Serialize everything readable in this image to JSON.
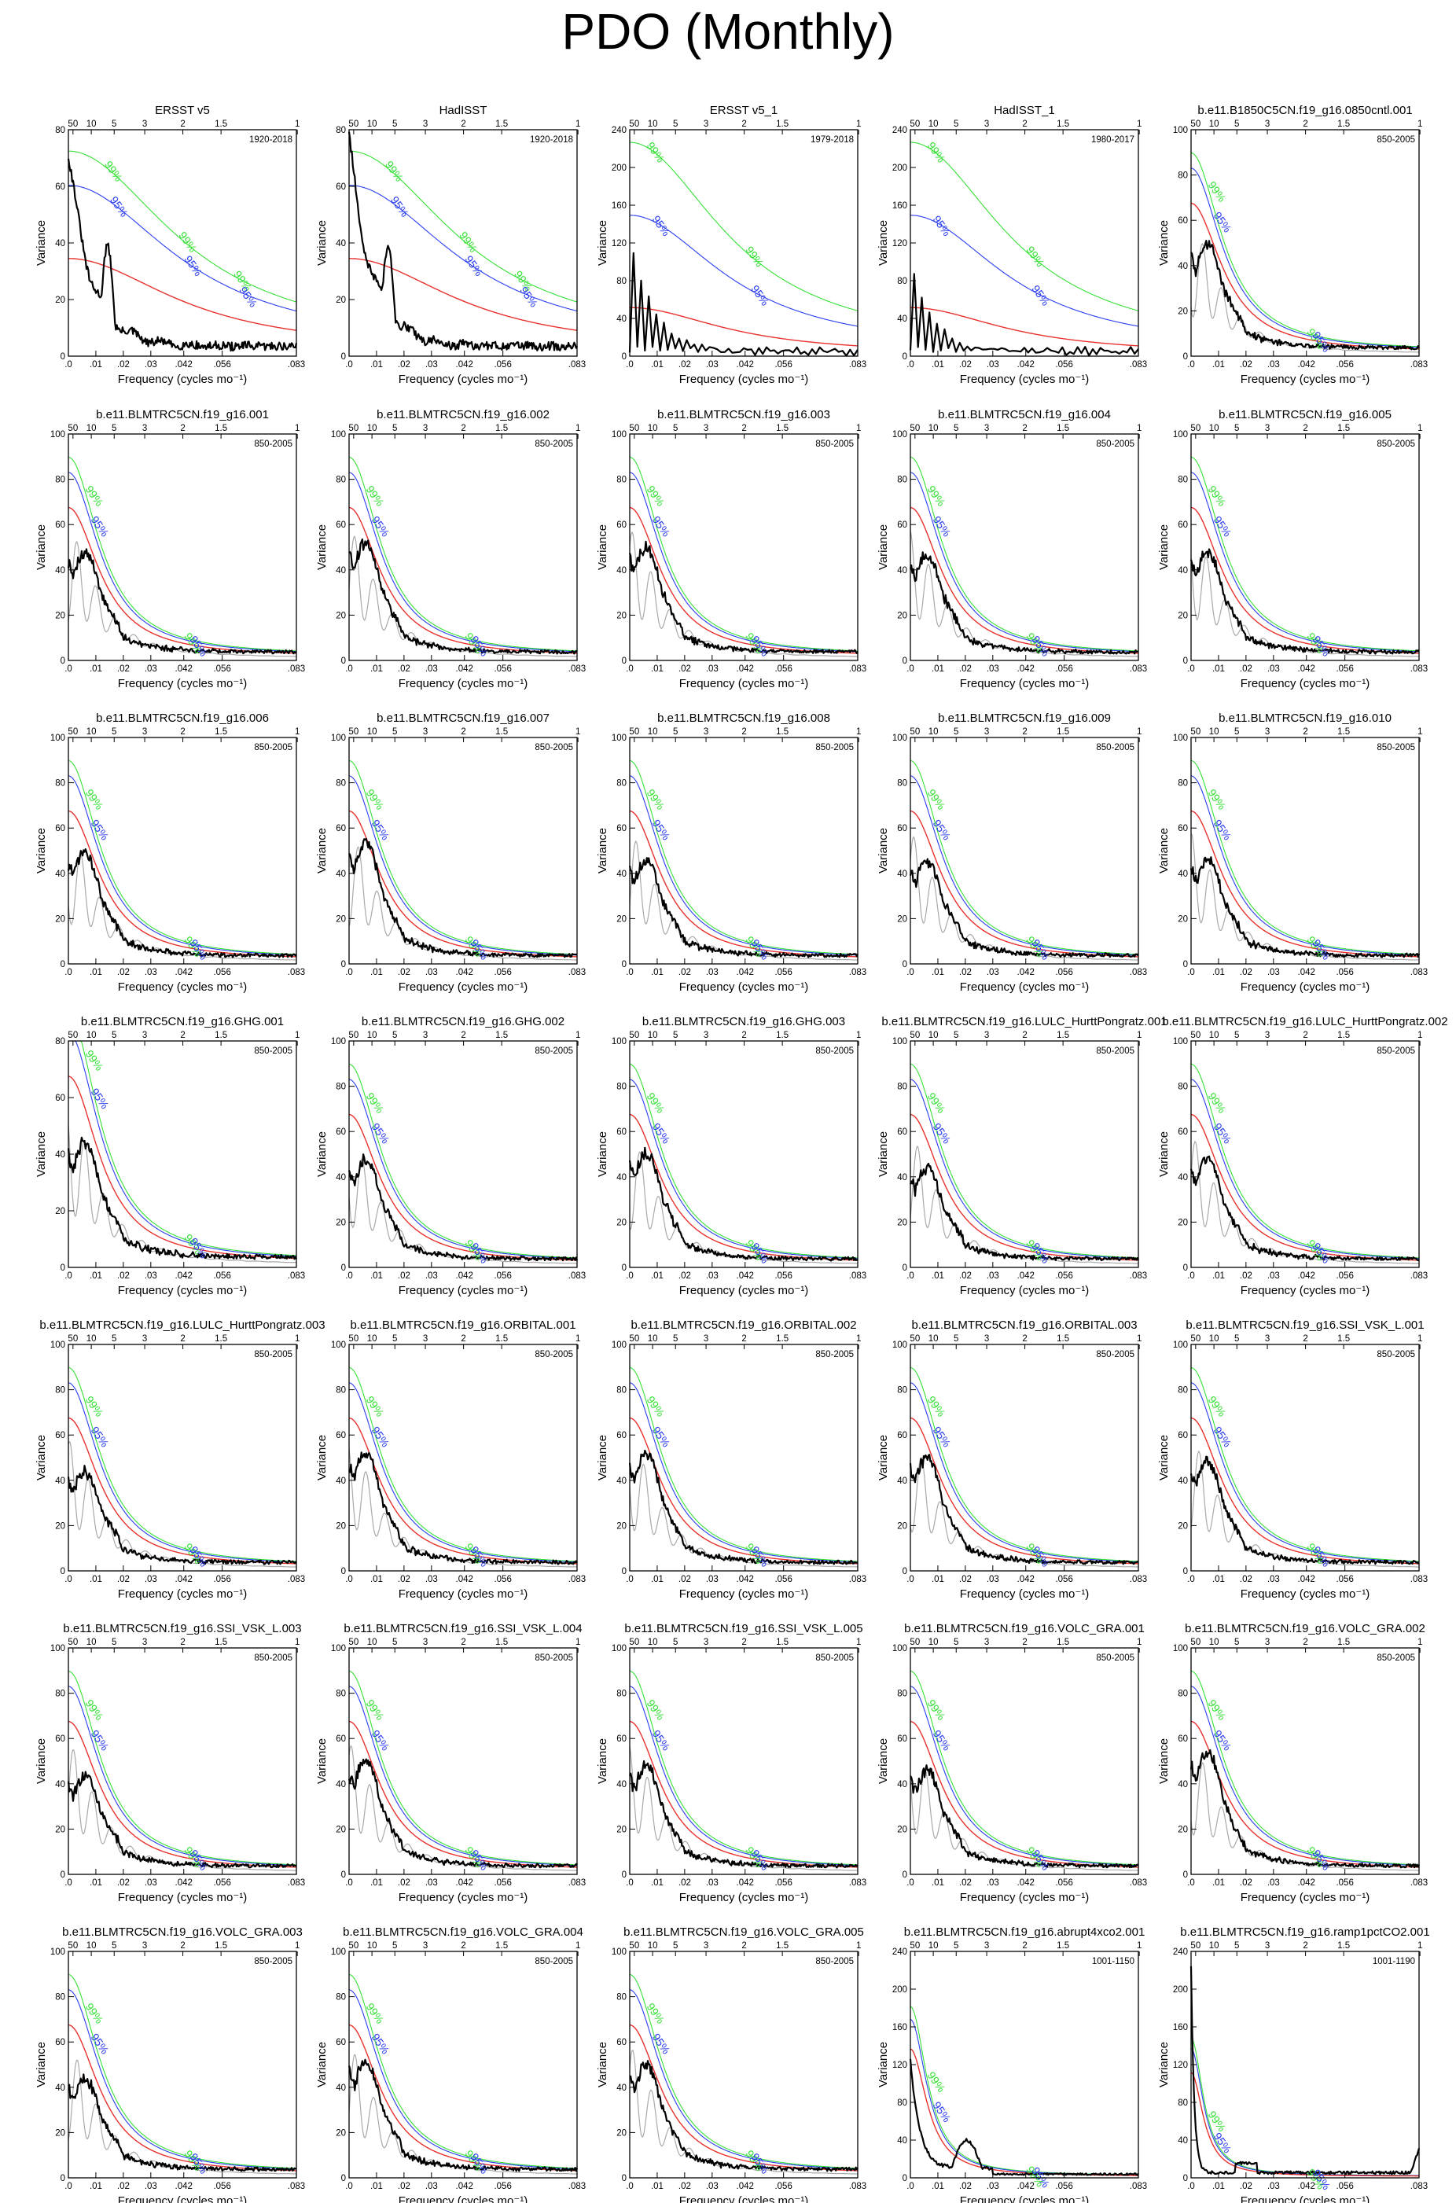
{
  "title": "PDO (Monthly)",
  "colors": {
    "red_null": "#e8312d",
    "blue_95": "#2a3df0",
    "green_99": "#37e037",
    "grey_ensemble": "#a9a9a9",
    "black_spec": "#000000"
  },
  "chart_data": {
    "type": "line",
    "common": {
      "xlabel": "Frequency (cycles mo⁻¹)",
      "ylabel": "Variance",
      "x_ticks": [
        ".0",
        ".01",
        ".02",
        ".03",
        ".042",
        ".056",
        ".083"
      ],
      "x_tick_values": [
        0,
        0.01,
        0.02,
        0.03,
        0.042,
        0.056,
        0.083
      ],
      "period_ticks": [
        "50",
        "10",
        "5",
        "3",
        "2",
        "1.5",
        "1"
      ],
      "period_tick_freqs": [
        0.00167,
        0.00833,
        0.01667,
        0.02778,
        0.04167,
        0.05556,
        0.08333
      ],
      "xlim": [
        0,
        0.083
      ],
      "label_95": "95%",
      "label_99": "99%"
    },
    "panels": [
      {
        "title": "ERSST v5",
        "years": "1920-2018",
        "ylim": [
          0,
          80
        ],
        "yticks": [
          "0",
          "20",
          "40",
          "60",
          "80"
        ],
        "grey": false,
        "style": "obs",
        "peak": 67
      },
      {
        "title": "HadISST",
        "years": "1920-2018",
        "ylim": [
          0,
          80
        ],
        "yticks": [
          "0",
          "20",
          "40",
          "60",
          "80"
        ],
        "grey": false,
        "style": "obs",
        "peak": 72
      },
      {
        "title": "ERSST v5_1",
        "years": "1979-2018",
        "ylim": [
          0,
          240
        ],
        "yticks": [
          "0",
          "40",
          "80",
          "120",
          "160",
          "200",
          "240"
        ],
        "grey": false,
        "style": "obs_short",
        "peak": 125
      },
      {
        "title": "HadISST_1",
        "years": "1980-2017",
        "ylim": [
          0,
          240
        ],
        "yticks": [
          "0",
          "40",
          "80",
          "120",
          "160",
          "200",
          "240"
        ],
        "grey": false,
        "style": "obs_short",
        "peak": 95
      },
      {
        "title": "b.e11.B1850C5CN.f19_g16.0850cntl.001",
        "years": "850-2005",
        "ylim": [
          0,
          100
        ],
        "yticks": [
          "0",
          "20",
          "40",
          "60",
          "80",
          "100"
        ],
        "grey": true,
        "style": "model",
        "peak": 45
      },
      {
        "title": "b.e11.BLMTRC5CN.f19_g16.001",
        "years": "850-2005",
        "ylim": [
          0,
          100
        ],
        "yticks": [
          "0",
          "20",
          "40",
          "60",
          "80",
          "100"
        ],
        "grey": true,
        "style": "model",
        "peak": 44
      },
      {
        "title": "b.e11.BLMTRC5CN.f19_g16.002",
        "years": "850-2005",
        "ylim": [
          0,
          100
        ],
        "yticks": [
          "0",
          "20",
          "40",
          "60",
          "80",
          "100"
        ],
        "grey": true,
        "style": "model",
        "peak": 48
      },
      {
        "title": "b.e11.BLMTRC5CN.f19_g16.003",
        "years": "850-2005",
        "ylim": [
          0,
          100
        ],
        "yticks": [
          "0",
          "20",
          "40",
          "60",
          "80",
          "100"
        ],
        "grey": true,
        "style": "model",
        "peak": 46
      },
      {
        "title": "b.e11.BLMTRC5CN.f19_g16.004",
        "years": "850-2005",
        "ylim": [
          0,
          100
        ],
        "yticks": [
          "0",
          "20",
          "40",
          "60",
          "80",
          "100"
        ],
        "grey": true,
        "style": "model",
        "peak": 43
      },
      {
        "title": "b.e11.BLMTRC5CN.f19_g16.005",
        "years": "850-2005",
        "ylim": [
          0,
          100
        ],
        "yticks": [
          "0",
          "20",
          "40",
          "60",
          "80",
          "100"
        ],
        "grey": true,
        "style": "model",
        "peak": 44
      },
      {
        "title": "b.e11.BLMTRC5CN.f19_g16.006",
        "years": "850-2005",
        "ylim": [
          0,
          100
        ],
        "yticks": [
          "0",
          "20",
          "40",
          "60",
          "80",
          "100"
        ],
        "grey": true,
        "style": "model",
        "peak": 45
      },
      {
        "title": "b.e11.BLMTRC5CN.f19_g16.007",
        "years": "850-2005",
        "ylim": [
          0,
          100
        ],
        "yticks": [
          "0",
          "20",
          "40",
          "60",
          "80",
          "100"
        ],
        "grey": true,
        "style": "model",
        "peak": 50
      },
      {
        "title": "b.e11.BLMTRC5CN.f19_g16.008",
        "years": "850-2005",
        "ylim": [
          0,
          100
        ],
        "yticks": [
          "0",
          "20",
          "40",
          "60",
          "80",
          "100"
        ],
        "grey": true,
        "style": "model",
        "peak": 42
      },
      {
        "title": "b.e11.BLMTRC5CN.f19_g16.009",
        "years": "850-2005",
        "ylim": [
          0,
          100
        ],
        "yticks": [
          "0",
          "20",
          "40",
          "60",
          "80",
          "100"
        ],
        "grey": true,
        "style": "model",
        "peak": 42
      },
      {
        "title": "b.e11.BLMTRC5CN.f19_g16.010",
        "years": "850-2005",
        "ylim": [
          0,
          100
        ],
        "yticks": [
          "0",
          "20",
          "40",
          "60",
          "80",
          "100"
        ],
        "grey": true,
        "style": "model",
        "peak": 42
      },
      {
        "title": "b.e11.BLMTRC5CN.f19_g16.GHG.001",
        "years": "850-2005",
        "ylim": [
          0,
          80
        ],
        "yticks": [
          "0",
          "20",
          "40",
          "60",
          "80"
        ],
        "grey": true,
        "style": "model",
        "peak": 40
      },
      {
        "title": "b.e11.BLMTRC5CN.f19_g16.GHG.002",
        "years": "850-2005",
        "ylim": [
          0,
          100
        ],
        "yticks": [
          "0",
          "20",
          "40",
          "60",
          "80",
          "100"
        ],
        "grey": true,
        "style": "model",
        "peak": 44
      },
      {
        "title": "b.e11.BLMTRC5CN.f19_g16.GHG.003",
        "years": "850-2005",
        "ylim": [
          0,
          100
        ],
        "yticks": [
          "0",
          "20",
          "40",
          "60",
          "80",
          "100"
        ],
        "grey": true,
        "style": "model",
        "peak": 47
      },
      {
        "title": "b.e11.BLMTRC5CN.f19_g16.LULC_HurttPongratz.001",
        "years": "850-2005",
        "ylim": [
          0,
          100
        ],
        "yticks": [
          "0",
          "20",
          "40",
          "60",
          "80",
          "100"
        ],
        "grey": true,
        "style": "model",
        "peak": 40
      },
      {
        "title": "b.e11.BLMTRC5CN.f19_g16.LULC_HurttPongratz.002",
        "years": "850-2005",
        "ylim": [
          0,
          100
        ],
        "yticks": [
          "0",
          "20",
          "40",
          "60",
          "80",
          "100"
        ],
        "grey": true,
        "style": "model",
        "peak": 44
      },
      {
        "title": "b.e11.BLMTRC5CN.f19_g16.LULC_HurttPongratz.003",
        "years": "850-2005",
        "ylim": [
          0,
          100
        ],
        "yticks": [
          "0",
          "20",
          "40",
          "60",
          "80",
          "100"
        ],
        "grey": true,
        "style": "model",
        "peak": 40
      },
      {
        "title": "b.e11.BLMTRC5CN.f19_g16.ORBITAL.001",
        "years": "850-2005",
        "ylim": [
          0,
          100
        ],
        "yticks": [
          "0",
          "20",
          "40",
          "60",
          "80",
          "100"
        ],
        "grey": true,
        "style": "model",
        "peak": 48
      },
      {
        "title": "b.e11.BLMTRC5CN.f19_g16.ORBITAL.002",
        "years": "850-2005",
        "ylim": [
          0,
          100
        ],
        "yticks": [
          "0",
          "20",
          "40",
          "60",
          "80",
          "100"
        ],
        "grey": true,
        "style": "model",
        "peak": 48
      },
      {
        "title": "b.e11.BLMTRC5CN.f19_g16.ORBITAL.003",
        "years": "850-2005",
        "ylim": [
          0,
          100
        ],
        "yticks": [
          "0",
          "20",
          "40",
          "60",
          "80",
          "100"
        ],
        "grey": true,
        "style": "model",
        "peak": 46
      },
      {
        "title": "b.e11.BLMTRC5CN.f19_g16.SSI_VSK_L.001",
        "years": "850-2005",
        "ylim": [
          0,
          100
        ],
        "yticks": [
          "0",
          "20",
          "40",
          "60",
          "80",
          "100"
        ],
        "grey": true,
        "style": "model",
        "peak": 44
      },
      {
        "title": "b.e11.BLMTRC5CN.f19_g16.SSI_VSK_L.003",
        "years": "850-2005",
        "ylim": [
          0,
          100
        ],
        "yticks": [
          "0",
          "20",
          "40",
          "60",
          "80",
          "100"
        ],
        "grey": true,
        "style": "model",
        "peak": 40
      },
      {
        "title": "b.e11.BLMTRC5CN.f19_g16.SSI_VSK_L.004",
        "years": "850-2005",
        "ylim": [
          0,
          100
        ],
        "yticks": [
          "0",
          "20",
          "40",
          "60",
          "80",
          "100"
        ],
        "grey": true,
        "style": "model",
        "peak": 46
      },
      {
        "title": "b.e11.BLMTRC5CN.f19_g16.SSI_VSK_L.005",
        "years": "850-2005",
        "ylim": [
          0,
          100
        ],
        "yticks": [
          "0",
          "20",
          "40",
          "60",
          "80",
          "100"
        ],
        "grey": true,
        "style": "model",
        "peak": 44
      },
      {
        "title": "b.e11.BLMTRC5CN.f19_g16.VOLC_GRA.001",
        "years": "850-2005",
        "ylim": [
          0,
          100
        ],
        "yticks": [
          "0",
          "20",
          "40",
          "60",
          "80",
          "100"
        ],
        "grey": true,
        "style": "model",
        "peak": 42
      },
      {
        "title": "b.e11.BLMTRC5CN.f19_g16.VOLC_GRA.002",
        "years": "850-2005",
        "ylim": [
          0,
          100
        ],
        "yticks": [
          "0",
          "20",
          "40",
          "60",
          "80",
          "100"
        ],
        "grey": true,
        "style": "model",
        "peak": 50
      },
      {
        "title": "b.e11.BLMTRC5CN.f19_g16.VOLC_GRA.003",
        "years": "850-2005",
        "ylim": [
          0,
          100
        ],
        "yticks": [
          "0",
          "20",
          "40",
          "60",
          "80",
          "100"
        ],
        "grey": true,
        "style": "model",
        "peak": 40
      },
      {
        "title": "b.e11.BLMTRC5CN.f19_g16.VOLC_GRA.004",
        "years": "850-2005",
        "ylim": [
          0,
          100
        ],
        "yticks": [
          "0",
          "20",
          "40",
          "60",
          "80",
          "100"
        ],
        "grey": true,
        "style": "model",
        "peak": 48
      },
      {
        "title": "b.e11.BLMTRC5CN.f19_g16.VOLC_GRA.005",
        "years": "850-2005",
        "ylim": [
          0,
          100
        ],
        "yticks": [
          "0",
          "20",
          "40",
          "60",
          "80",
          "100"
        ],
        "grey": true,
        "style": "model",
        "peak": 46
      },
      {
        "title": "b.e11.BLMTRC5CN.f19_g16.abrupt4xco2.001",
        "years": "1001-1150",
        "ylim": [
          0,
          240
        ],
        "yticks": [
          "0",
          "40",
          "80",
          "120",
          "160",
          "200",
          "240"
        ],
        "grey": false,
        "style": "abrupt",
        "peak": 115
      },
      {
        "title": "b.e11.BLMTRC5CN.f19_g16.ramp1pctCO2.001",
        "years": "1001-1190",
        "ylim": [
          0,
          240
        ],
        "yticks": [
          "0",
          "40",
          "80",
          "120",
          "160",
          "200",
          "240"
        ],
        "grey": false,
        "style": "ramp",
        "peak": 220
      }
    ]
  }
}
